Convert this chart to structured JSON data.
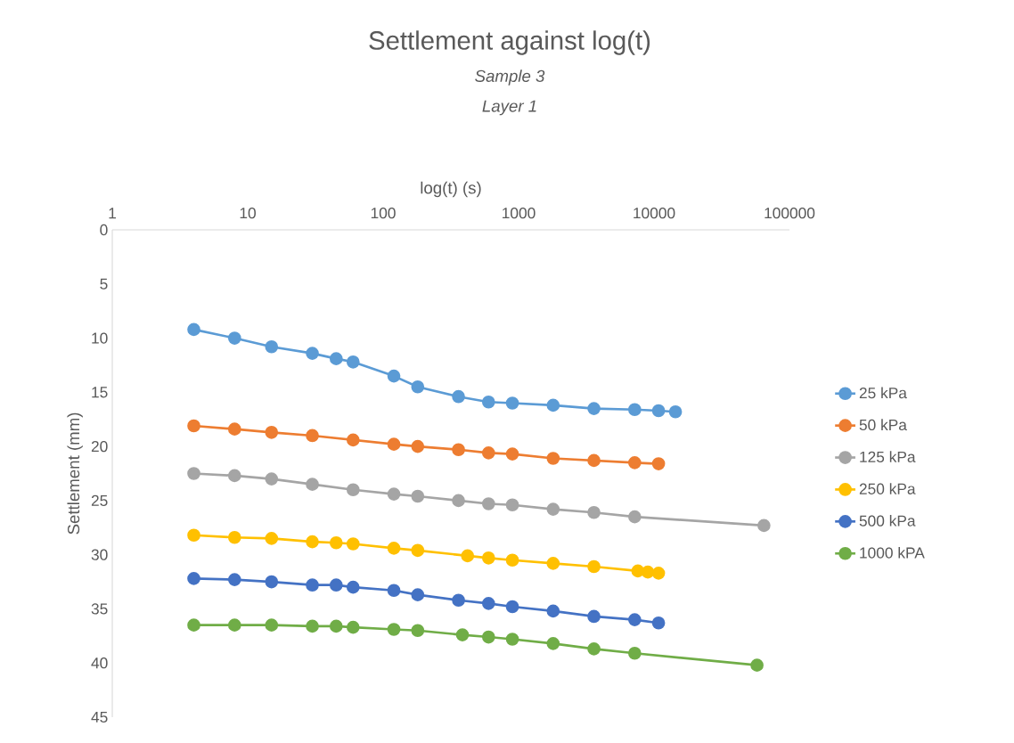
{
  "chart_data": {
    "type": "line",
    "title": "Settlement against log(t)",
    "subtitle": "*Sample 3*",
    "annotations": [
      "*Layer 1*"
    ],
    "xlabel": "log(t) (s)",
    "ylabel": "Settlement (mm)",
    "log": "x",
    "xlim": [
      1,
      100000
    ],
    "xticks": [
      1,
      10,
      100,
      1000,
      10000,
      100000
    ],
    "ylim": [
      45,
      0
    ],
    "yticks": [
      0,
      5,
      10,
      15,
      20,
      25,
      30,
      35,
      40,
      45
    ],
    "marker": "circle",
    "legend": "right",
    "grid": false,
    "series": [
      {
        "name": "25 kPa",
        "color": "#5b9bd5",
        "x": [
          4,
          8,
          15,
          30,
          45,
          60,
          120,
          180,
          360,
          600,
          900,
          1800,
          3600,
          7200,
          10800,
          14400
        ],
        "values": [
          9.2,
          10.0,
          10.8,
          11.4,
          11.9,
          12.2,
          13.5,
          14.5,
          15.4,
          15.9,
          16.0,
          16.2,
          16.5,
          16.6,
          16.7,
          16.8
        ]
      },
      {
        "name": "50 kPa",
        "color": "#ed7d31",
        "x": [
          4,
          8,
          15,
          30,
          60,
          120,
          180,
          360,
          600,
          900,
          1800,
          3600,
          7200,
          10800
        ],
        "values": [
          18.1,
          18.4,
          18.7,
          19.0,
          19.4,
          19.8,
          20.0,
          20.3,
          20.6,
          20.7,
          21.1,
          21.3,
          21.5,
          21.6
        ]
      },
      {
        "name": "125 kPa",
        "color": "#a5a5a5",
        "x": [
          4,
          8,
          15,
          30,
          60,
          120,
          180,
          360,
          600,
          900,
          1800,
          3600,
          7200,
          64800
        ],
        "values": [
          22.5,
          22.7,
          23.0,
          23.5,
          24.0,
          24.4,
          24.6,
          25.0,
          25.3,
          25.4,
          25.8,
          26.1,
          26.5,
          27.3
        ]
      },
      {
        "name": "250 kPa",
        "color": "#ffc000",
        "x": [
          4,
          8,
          15,
          30,
          45,
          60,
          120,
          180,
          420,
          600,
          900,
          1800,
          3600,
          7600,
          9000,
          10800
        ],
        "values": [
          28.2,
          28.4,
          28.5,
          28.8,
          28.9,
          29.0,
          29.4,
          29.6,
          30.1,
          30.3,
          30.5,
          30.8,
          31.1,
          31.5,
          31.6,
          31.7
        ]
      },
      {
        "name": "500 kPa",
        "color": "#4472c4",
        "x": [
          4,
          8,
          15,
          30,
          45,
          60,
          120,
          180,
          360,
          600,
          900,
          1800,
          3600,
          7200,
          10800
        ],
        "values": [
          32.2,
          32.3,
          32.5,
          32.8,
          32.8,
          33.0,
          33.3,
          33.7,
          34.2,
          34.5,
          34.8,
          35.2,
          35.7,
          36.0,
          36.3
        ]
      },
      {
        "name": "1000 kPA",
        "color": "#70ad47",
        "x": [
          4,
          8,
          15,
          30,
          45,
          60,
          120,
          180,
          385,
          600,
          900,
          1800,
          3600,
          7200,
          57600
        ],
        "values": [
          36.5,
          36.5,
          36.5,
          36.6,
          36.6,
          36.7,
          36.9,
          37.0,
          37.4,
          37.6,
          37.8,
          38.2,
          38.7,
          39.1,
          40.2
        ]
      }
    ]
  }
}
